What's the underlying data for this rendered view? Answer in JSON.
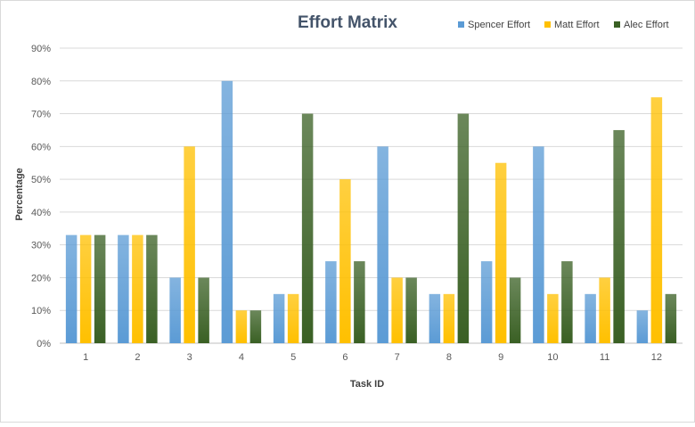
{
  "chart_data": {
    "type": "bar",
    "title": "Effort Matrix",
    "xlabel": "Task ID",
    "ylabel": "Percentage",
    "categories": [
      "1",
      "2",
      "3",
      "4",
      "5",
      "6",
      "7",
      "8",
      "9",
      "10",
      "11",
      "12"
    ],
    "ylim": [
      0,
      90
    ],
    "yticks": [
      0,
      10,
      20,
      30,
      40,
      50,
      60,
      70,
      80,
      90
    ],
    "ytick_suffix": "%",
    "grid": true,
    "legend_position": "top-right",
    "series": [
      {
        "name": "Spencer Effort",
        "color": "#5b9bd5",
        "values": [
          33,
          33,
          20,
          80,
          15,
          25,
          60,
          15,
          25,
          60,
          15,
          10
        ]
      },
      {
        "name": "Matt Effort",
        "color": "#ffc000",
        "values": [
          33,
          33,
          60,
          10,
          15,
          50,
          20,
          15,
          55,
          15,
          20,
          75
        ]
      },
      {
        "name": "Alec Effort",
        "color": "#3a6024",
        "values": [
          33,
          33,
          20,
          10,
          70,
          25,
          20,
          70,
          20,
          25,
          65,
          15
        ]
      }
    ]
  }
}
